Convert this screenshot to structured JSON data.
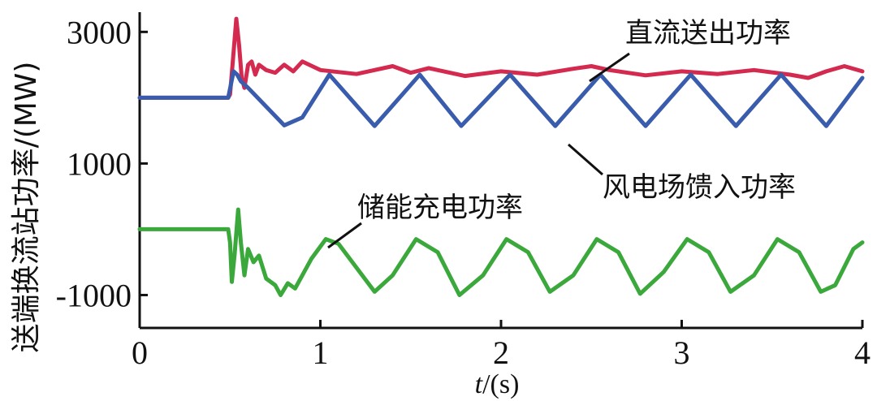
{
  "chart_data": {
    "type": "line",
    "title": "",
    "xlabel_italic": "t",
    "xlabel_rest": "/(s)",
    "ylabel": "送端换流站功率/(MW)",
    "xlim": [
      0,
      4
    ],
    "ylim": [
      -1500,
      3300
    ],
    "x_ticks": [
      0,
      1,
      2,
      3,
      4
    ],
    "x_tick_labels": [
      "0",
      "1",
      "2",
      "3",
      "4"
    ],
    "y_ticks": [
      3000,
      1000,
      -1000
    ],
    "y_tick_labels": [
      "3000",
      "1000",
      "-1000"
    ],
    "grid": false,
    "legend": "none (inline annotations)",
    "series": [
      {
        "name": "直流送出功率",
        "color": "#d42a4f",
        "points": [
          [
            0,
            2000
          ],
          [
            0.49,
            2000
          ],
          [
            0.5,
            2050
          ],
          [
            0.52,
            2700
          ],
          [
            0.535,
            3200
          ],
          [
            0.55,
            2800
          ],
          [
            0.565,
            2300
          ],
          [
            0.58,
            2150
          ],
          [
            0.6,
            2500
          ],
          [
            0.62,
            2550
          ],
          [
            0.64,
            2350
          ],
          [
            0.66,
            2500
          ],
          [
            0.7,
            2420
          ],
          [
            0.75,
            2380
          ],
          [
            0.8,
            2500
          ],
          [
            0.85,
            2400
          ],
          [
            0.9,
            2550
          ],
          [
            1.0,
            2420
          ],
          [
            1.2,
            2360
          ],
          [
            1.3,
            2420
          ],
          [
            1.4,
            2480
          ],
          [
            1.5,
            2380
          ],
          [
            1.6,
            2450
          ],
          [
            1.8,
            2330
          ],
          [
            2.0,
            2400
          ],
          [
            2.2,
            2350
          ],
          [
            2.4,
            2440
          ],
          [
            2.5,
            2480
          ],
          [
            2.6,
            2420
          ],
          [
            2.8,
            2340
          ],
          [
            3.0,
            2400
          ],
          [
            3.2,
            2360
          ],
          [
            3.4,
            2420
          ],
          [
            3.6,
            2350
          ],
          [
            3.7,
            2300
          ],
          [
            3.8,
            2400
          ],
          [
            3.9,
            2480
          ],
          [
            4.0,
            2400
          ]
        ]
      },
      {
        "name": "风电场馈入功率",
        "color": "#3a5cad",
        "points": [
          [
            0,
            2000
          ],
          [
            0.49,
            2000
          ],
          [
            0.52,
            2400
          ],
          [
            0.54,
            2350
          ],
          [
            0.56,
            2250
          ],
          [
            0.6,
            2150
          ],
          [
            0.8,
            1580
          ],
          [
            0.9,
            1700
          ],
          [
            1.05,
            2350
          ],
          [
            1.3,
            1570
          ],
          [
            1.55,
            2350
          ],
          [
            1.78,
            1570
          ],
          [
            2.05,
            2350
          ],
          [
            2.3,
            1570
          ],
          [
            2.55,
            2350
          ],
          [
            2.8,
            1570
          ],
          [
            3.05,
            2350
          ],
          [
            3.3,
            1570
          ],
          [
            3.55,
            2350
          ],
          [
            3.8,
            1570
          ],
          [
            4.0,
            2300
          ]
        ]
      },
      {
        "name": "储能充电功率",
        "color": "#3aa83a",
        "points": [
          [
            0,
            0
          ],
          [
            0.49,
            0
          ],
          [
            0.5,
            -200
          ],
          [
            0.51,
            -800
          ],
          [
            0.525,
            -400
          ],
          [
            0.545,
            300
          ],
          [
            0.56,
            -200
          ],
          [
            0.58,
            -700
          ],
          [
            0.6,
            -300
          ],
          [
            0.63,
            -500
          ],
          [
            0.66,
            -400
          ],
          [
            0.7,
            -750
          ],
          [
            0.75,
            -850
          ],
          [
            0.78,
            -1000
          ],
          [
            0.82,
            -820
          ],
          [
            0.86,
            -900
          ],
          [
            0.95,
            -450
          ],
          [
            1.03,
            -150
          ],
          [
            1.1,
            -220
          ],
          [
            1.3,
            -950
          ],
          [
            1.4,
            -700
          ],
          [
            1.53,
            -150
          ],
          [
            1.65,
            -350
          ],
          [
            1.77,
            -1000
          ],
          [
            1.9,
            -700
          ],
          [
            2.03,
            -150
          ],
          [
            2.15,
            -350
          ],
          [
            2.27,
            -950
          ],
          [
            2.4,
            -700
          ],
          [
            2.53,
            -150
          ],
          [
            2.65,
            -350
          ],
          [
            2.77,
            -980
          ],
          [
            2.9,
            -650
          ],
          [
            3.03,
            -150
          ],
          [
            3.15,
            -350
          ],
          [
            3.27,
            -950
          ],
          [
            3.4,
            -700
          ],
          [
            3.53,
            -150
          ],
          [
            3.65,
            -350
          ],
          [
            3.77,
            -950
          ],
          [
            3.85,
            -850
          ],
          [
            3.95,
            -300
          ],
          [
            4.0,
            -200
          ]
        ]
      }
    ]
  }
}
